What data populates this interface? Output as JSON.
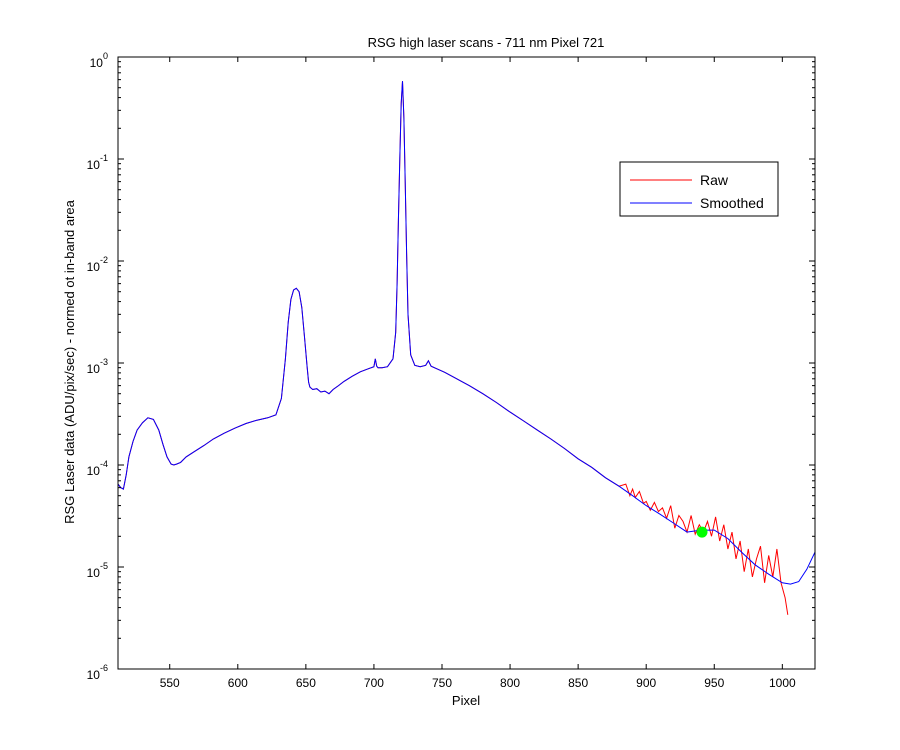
{
  "chart_data": {
    "type": "line",
    "title": "RSG high laser scans  - 711 nm    Pixel 721",
    "xlabel": "Pixel",
    "ylabel": "RSG Laser data (ADU/pix/sec) - normed ot in-band area",
    "xlim": [
      512,
      1024
    ],
    "ylim": [
      1e-06,
      1
    ],
    "yscale": "log",
    "grid": false,
    "legend_position": "top-right",
    "x_ticks": [
      550,
      600,
      650,
      700,
      750,
      800,
      850,
      900,
      950,
      1000
    ],
    "x_tick_labels": [
      "550",
      "600",
      "650",
      "700",
      "750",
      "800",
      "850",
      "900",
      "950",
      "1000"
    ],
    "y_ticks": [
      {
        "value": 1e-06,
        "base": "10",
        "exp": "-6"
      },
      {
        "value": 1e-05,
        "base": "10",
        "exp": "-5"
      },
      {
        "value": 0.0001,
        "base": "10",
        "exp": "-4"
      },
      {
        "value": 0.001,
        "base": "10",
        "exp": "-3"
      },
      {
        "value": 0.01,
        "base": "10",
        "exp": "-2"
      },
      {
        "value": 0.1,
        "base": "10",
        "exp": "-1"
      },
      {
        "value": 1,
        "base": "10",
        "exp": "0"
      }
    ],
    "series": [
      {
        "name": "Raw",
        "color": "#ff0000",
        "x": [
          512,
          514,
          516,
          518,
          520,
          523,
          526,
          530,
          534,
          538,
          542,
          545,
          548,
          551,
          553,
          555,
          558,
          562,
          568,
          575,
          582,
          590,
          598,
          606,
          614,
          622,
          628,
          632,
          635,
          637,
          639,
          641,
          643,
          645,
          647,
          649,
          651,
          652,
          653,
          655,
          658,
          661,
          664,
          667,
          670,
          674,
          678,
          684,
          690,
          696,
          700,
          701,
          702,
          703,
          706,
          710,
          714,
          716,
          717,
          718,
          719,
          720,
          721,
          722,
          723,
          724,
          725,
          727,
          730,
          734,
          738,
          740,
          742,
          746,
          752,
          760,
          770,
          780,
          790,
          800,
          810,
          820,
          830,
          840,
          850,
          860,
          870,
          880,
          885,
          888,
          890,
          892,
          895,
          898,
          900,
          903,
          906,
          909,
          912,
          915,
          918,
          921,
          924,
          927,
          930,
          933,
          936,
          939,
          942,
          945,
          948,
          951,
          954,
          957,
          960,
          963,
          966,
          969,
          972,
          975,
          978,
          981,
          984,
          987,
          990,
          993,
          996,
          999,
          1002,
          1004
        ],
        "y": [
          6.5e-05,
          6e-05,
          5.8e-05,
          8e-05,
          0.00012,
          0.00017,
          0.00022,
          0.00026,
          0.00029,
          0.00028,
          0.00022,
          0.00016,
          0.00012,
          0.000102,
          0.0001,
          0.000102,
          0.000106,
          0.00012,
          0.000135,
          0.000155,
          0.00018,
          0.000205,
          0.00023,
          0.000255,
          0.000275,
          0.00029,
          0.00031,
          0.00045,
          0.0011,
          0.0025,
          0.0042,
          0.0052,
          0.0054,
          0.005,
          0.0035,
          0.0018,
          0.0009,
          0.00065,
          0.00058,
          0.00055,
          0.00056,
          0.00052,
          0.00053,
          0.0005,
          0.00055,
          0.0006,
          0.00066,
          0.00074,
          0.00082,
          0.00088,
          0.00092,
          0.0011,
          0.00093,
          0.0009,
          0.0009,
          0.00092,
          0.0011,
          0.002,
          0.006,
          0.025,
          0.1,
          0.35,
          0.58,
          0.25,
          0.06,
          0.012,
          0.003,
          0.0012,
          0.00095,
          0.00092,
          0.00095,
          0.00105,
          0.00093,
          0.00088,
          0.00081,
          0.00071,
          0.0006,
          0.0005,
          0.00041,
          0.00033,
          0.00027,
          0.00022,
          0.00018,
          0.000145,
          0.000115,
          9.5e-05,
          7.5e-05,
          6.2e-05,
          6.5e-05,
          5e-05,
          5.8e-05,
          4.8e-05,
          5.5e-05,
          4.2e-05,
          4.4e-05,
          3.6e-05,
          4.3e-05,
          3.5e-05,
          3.8e-05,
          3e-05,
          4e-05,
          2.4e-05,
          3.2e-05,
          2.8e-05,
          2.2e-05,
          3.2e-05,
          2.1e-05,
          2.6e-05,
          2.2e-05,
          2.8e-05,
          2e-05,
          3.1e-05,
          1.8e-05,
          2.6e-05,
          1.5e-05,
          2.2e-05,
          1.2e-05,
          1.8e-05,
          9e-06,
          1.5e-05,
          8e-06,
          1.2e-05,
          1.6e-05,
          7e-06,
          1.3e-05,
          8e-06,
          1.5e-05,
          7e-06,
          5e-06,
          3.4e-06
        ]
      },
      {
        "name": "Smoothed",
        "color": "#0000ff",
        "x": [
          512,
          514,
          516,
          518,
          520,
          523,
          526,
          530,
          534,
          538,
          542,
          545,
          548,
          551,
          553,
          555,
          558,
          562,
          568,
          575,
          582,
          590,
          598,
          606,
          614,
          622,
          628,
          632,
          635,
          637,
          639,
          641,
          643,
          645,
          647,
          649,
          651,
          652,
          653,
          655,
          658,
          661,
          664,
          667,
          670,
          674,
          678,
          684,
          690,
          696,
          700,
          701,
          702,
          703,
          706,
          710,
          714,
          716,
          717,
          718,
          719,
          720,
          721,
          722,
          723,
          724,
          725,
          727,
          730,
          734,
          738,
          740,
          742,
          746,
          752,
          760,
          770,
          780,
          790,
          800,
          810,
          820,
          830,
          840,
          850,
          860,
          870,
          880,
          890,
          900,
          910,
          920,
          930,
          940,
          950,
          960,
          970,
          980,
          990,
          1000,
          1006,
          1012,
          1018,
          1024
        ],
        "y": [
          6.5e-05,
          6e-05,
          5.8e-05,
          8e-05,
          0.00012,
          0.00017,
          0.00022,
          0.00026,
          0.00029,
          0.00028,
          0.00022,
          0.00016,
          0.00012,
          0.000102,
          0.0001,
          0.000102,
          0.000106,
          0.00012,
          0.000135,
          0.000155,
          0.00018,
          0.000205,
          0.00023,
          0.000255,
          0.000275,
          0.00029,
          0.00031,
          0.00045,
          0.0011,
          0.0025,
          0.0042,
          0.0052,
          0.0054,
          0.005,
          0.0035,
          0.0018,
          0.0009,
          0.00065,
          0.00058,
          0.00055,
          0.00056,
          0.00052,
          0.00053,
          0.0005,
          0.00055,
          0.0006,
          0.00066,
          0.00074,
          0.00082,
          0.00088,
          0.00092,
          0.0011,
          0.00093,
          0.0009,
          0.0009,
          0.00092,
          0.0011,
          0.002,
          0.006,
          0.025,
          0.1,
          0.35,
          0.58,
          0.25,
          0.06,
          0.012,
          0.003,
          0.0012,
          0.00095,
          0.00092,
          0.00095,
          0.00105,
          0.00093,
          0.00088,
          0.00081,
          0.00071,
          0.0006,
          0.0005,
          0.00041,
          0.00033,
          0.00027,
          0.00022,
          0.00018,
          0.000145,
          0.000115,
          9.5e-05,
          7.5e-05,
          6.2e-05,
          5e-05,
          4e-05,
          3.3e-05,
          2.7e-05,
          2.2e-05,
          2.3e-05,
          2.3e-05,
          1.9e-05,
          1.4e-05,
          1.05e-05,
          8.5e-06,
          7e-06,
          6.8e-06,
          7.2e-06,
          9.5e-06,
          1.4e-05
        ]
      }
    ],
    "highlight_point": {
      "x": 941,
      "y": 2.2e-05,
      "color": "#00ff00"
    }
  }
}
